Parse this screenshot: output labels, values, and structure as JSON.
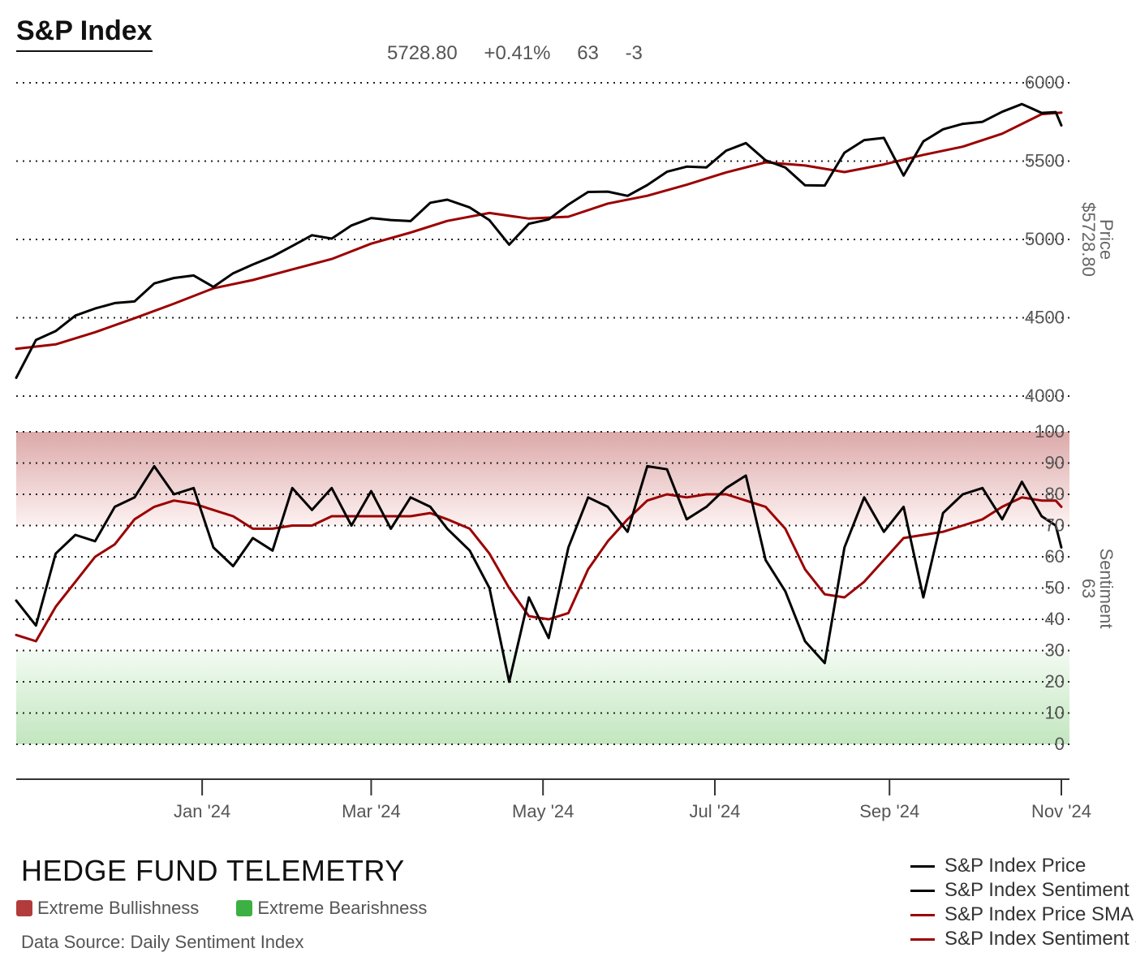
{
  "header": {
    "title": "S&P Index",
    "last_price": "5728.80",
    "change_pct": "+0.41%",
    "sentiment_value": "63",
    "sentiment_change": "-3"
  },
  "footer": {
    "brand": "HEDGE FUND TELEMETRY",
    "bull_label": "Extreme Bullishness",
    "bear_label": "Extreme Bearishness",
    "source": "Data Source: Daily Sentiment Index"
  },
  "colors": {
    "price": "#000000",
    "sentiment": "#000000",
    "sma": "#9b0000",
    "bull_zone": "#b23b3b",
    "bear_zone": "#3cb043"
  },
  "chart_data": [
    {
      "type": "line",
      "id": "price",
      "ylabel": "Price",
      "ylabel_value": "$5728.80",
      "ylim": [
        4000,
        6000
      ],
      "yticks": [
        4000,
        4500,
        5000,
        5500,
        6000
      ],
      "xlim": [
        "2023-10-27",
        "2024-11-01"
      ],
      "grid": true,
      "series": [
        {
          "name": "S&P Index Price",
          "x": [
            "2023-10-27",
            "2023-11-03",
            "2023-11-10",
            "2023-11-17",
            "2023-11-24",
            "2023-12-01",
            "2023-12-08",
            "2023-12-15",
            "2023-12-22",
            "2023-12-29",
            "2024-01-05",
            "2024-01-12",
            "2024-01-19",
            "2024-01-26",
            "2024-02-02",
            "2024-02-09",
            "2024-02-16",
            "2024-02-23",
            "2024-03-01",
            "2024-03-08",
            "2024-03-15",
            "2024-03-22",
            "2024-03-28",
            "2024-04-05",
            "2024-04-12",
            "2024-04-19",
            "2024-04-26",
            "2024-05-03",
            "2024-05-10",
            "2024-05-17",
            "2024-05-24",
            "2024-05-31",
            "2024-06-07",
            "2024-06-14",
            "2024-06-21",
            "2024-06-28",
            "2024-07-05",
            "2024-07-12",
            "2024-07-19",
            "2024-07-26",
            "2024-08-02",
            "2024-08-09",
            "2024-08-16",
            "2024-08-23",
            "2024-08-30",
            "2024-09-06",
            "2024-09-13",
            "2024-09-20",
            "2024-09-27",
            "2024-10-04",
            "2024-10-11",
            "2024-10-18",
            "2024-10-25",
            "2024-10-30",
            "2024-11-01"
          ],
          "values": [
            4117,
            4358,
            4415,
            4514,
            4559,
            4594,
            4604,
            4719,
            4754,
            4770,
            4697,
            4784,
            4840,
            4891,
            4958,
            5027,
            5005,
            5089,
            5137,
            5124,
            5117,
            5234,
            5254,
            5204,
            5123,
            4967,
            5100,
            5128,
            5223,
            5303,
            5305,
            5278,
            5347,
            5432,
            5465,
            5460,
            5567,
            5615,
            5505,
            5459,
            5346,
            5344,
            5554,
            5634,
            5648,
            5408,
            5626,
            5703,
            5738,
            5751,
            5815,
            5864,
            5808,
            5813,
            5728
          ]
        },
        {
          "name": "S&P Index Price SMA",
          "x": [
            "2023-10-27",
            "2023-11-10",
            "2023-11-24",
            "2023-12-08",
            "2023-12-22",
            "2024-01-05",
            "2024-01-19",
            "2024-02-02",
            "2024-02-16",
            "2024-03-01",
            "2024-03-15",
            "2024-03-28",
            "2024-04-12",
            "2024-04-26",
            "2024-05-10",
            "2024-05-24",
            "2024-06-07",
            "2024-06-21",
            "2024-07-05",
            "2024-07-19",
            "2024-08-02",
            "2024-08-16",
            "2024-08-30",
            "2024-09-13",
            "2024-09-27",
            "2024-10-11",
            "2024-10-25",
            "2024-11-01"
          ],
          "values": [
            4302,
            4330,
            4408,
            4497,
            4590,
            4688,
            4741,
            4809,
            4875,
            4973,
            5044,
            5118,
            5169,
            5133,
            5145,
            5229,
            5279,
            5349,
            5428,
            5492,
            5472,
            5430,
            5479,
            5540,
            5592,
            5675,
            5800,
            5810
          ]
        }
      ]
    },
    {
      "type": "line",
      "id": "sentiment",
      "ylabel": "Sentiment",
      "ylabel_value": "63",
      "ylim": [
        0,
        100
      ],
      "yticks": [
        0,
        10,
        20,
        30,
        40,
        50,
        60,
        70,
        80,
        90,
        100
      ],
      "xlim": [
        "2023-10-27",
        "2024-11-01"
      ],
      "xticks": [
        "Jan '24",
        "Mar '24",
        "May '24",
        "Jul '24",
        "Sep '24",
        "Nov '24"
      ],
      "xtick_dates": [
        "2024-01-01",
        "2024-03-01",
        "2024-05-01",
        "2024-07-01",
        "2024-09-01",
        "2024-11-01"
      ],
      "bands": [
        {
          "name": "Extreme Bullishness",
          "from": 70,
          "to": 100
        },
        {
          "name": "Extreme Bearishness",
          "from": 0,
          "to": 30
        }
      ],
      "series": [
        {
          "name": "S&P Index Sentiment",
          "x": [
            "2023-10-27",
            "2023-11-03",
            "2023-11-10",
            "2023-11-17",
            "2023-11-24",
            "2023-12-01",
            "2023-12-08",
            "2023-12-15",
            "2023-12-22",
            "2023-12-29",
            "2024-01-05",
            "2024-01-12",
            "2024-01-19",
            "2024-01-26",
            "2024-02-02",
            "2024-02-09",
            "2024-02-16",
            "2024-02-23",
            "2024-03-01",
            "2024-03-08",
            "2024-03-15",
            "2024-03-22",
            "2024-03-28",
            "2024-04-05",
            "2024-04-12",
            "2024-04-19",
            "2024-04-26",
            "2024-05-03",
            "2024-05-10",
            "2024-05-17",
            "2024-05-24",
            "2024-05-31",
            "2024-06-07",
            "2024-06-14",
            "2024-06-21",
            "2024-06-28",
            "2024-07-05",
            "2024-07-12",
            "2024-07-19",
            "2024-07-26",
            "2024-08-02",
            "2024-08-09",
            "2024-08-16",
            "2024-08-23",
            "2024-08-30",
            "2024-09-06",
            "2024-09-13",
            "2024-09-20",
            "2024-09-27",
            "2024-10-04",
            "2024-10-11",
            "2024-10-18",
            "2024-10-25",
            "2024-10-30",
            "2024-11-01"
          ],
          "values": [
            46,
            38,
            61,
            67,
            65,
            76,
            79,
            89,
            80,
            82,
            63,
            57,
            66,
            62,
            82,
            75,
            82,
            70,
            81,
            69,
            79,
            76,
            69,
            62,
            50,
            20,
            47,
            34,
            63,
            79,
            76,
            68,
            89,
            88,
            72,
            76,
            82,
            86,
            59,
            49,
            33,
            26,
            63,
            79,
            68,
            76,
            47,
            74,
            80,
            82,
            72,
            84,
            73,
            70,
            63
          ]
        },
        {
          "name": "S&P Index Sentiment SMA",
          "x": [
            "2023-10-27",
            "2023-11-03",
            "2023-11-10",
            "2023-11-17",
            "2023-11-24",
            "2023-12-01",
            "2023-12-08",
            "2023-12-15",
            "2023-12-22",
            "2023-12-29",
            "2024-01-05",
            "2024-01-12",
            "2024-01-19",
            "2024-01-26",
            "2024-02-02",
            "2024-02-09",
            "2024-02-16",
            "2024-02-23",
            "2024-03-01",
            "2024-03-08",
            "2024-03-15",
            "2024-03-22",
            "2024-03-28",
            "2024-04-05",
            "2024-04-12",
            "2024-04-19",
            "2024-04-26",
            "2024-05-03",
            "2024-05-10",
            "2024-05-17",
            "2024-05-24",
            "2024-05-31",
            "2024-06-07",
            "2024-06-14",
            "2024-06-21",
            "2024-06-28",
            "2024-07-05",
            "2024-07-12",
            "2024-07-19",
            "2024-07-26",
            "2024-08-02",
            "2024-08-09",
            "2024-08-16",
            "2024-08-23",
            "2024-08-30",
            "2024-09-06",
            "2024-09-13",
            "2024-09-20",
            "2024-09-27",
            "2024-10-04",
            "2024-10-11",
            "2024-10-18",
            "2024-10-25",
            "2024-10-30",
            "2024-11-01"
          ],
          "values": [
            35,
            33,
            44,
            52,
            60,
            64,
            72,
            76,
            78,
            77,
            75,
            73,
            69,
            69,
            70,
            70,
            73,
            73,
            73,
            73,
            73,
            74,
            72,
            69,
            61,
            50,
            41,
            40,
            42,
            56,
            65,
            72,
            78,
            80,
            79,
            80,
            80,
            78,
            76,
            69,
            56,
            48,
            47,
            52,
            59,
            66,
            67,
            68,
            70,
            72,
            76,
            79,
            78,
            78,
            76
          ]
        }
      ]
    }
  ],
  "legend": [
    {
      "label": "S&P Index Price",
      "color": "#000000"
    },
    {
      "label": "S&P Index Sentiment",
      "color": "#000000"
    },
    {
      "label": "S&P Index Price SMA",
      "color": "#9b0000"
    },
    {
      "label": "S&P Index Sentiment SMA",
      "color": "#9b0000"
    }
  ]
}
